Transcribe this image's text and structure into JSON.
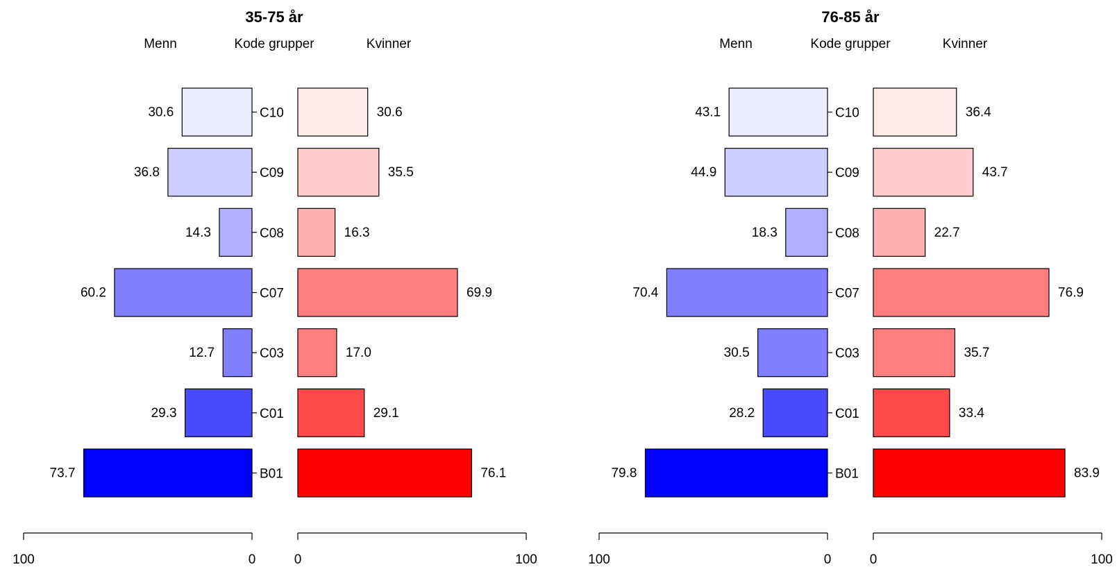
{
  "chart_data": [
    {
      "type": "bar",
      "title": "35-75 år",
      "headers": {
        "left": "Menn",
        "center": "Kode grupper",
        "right": "Kvinner"
      },
      "categories": [
        "C10",
        "C09",
        "C08",
        "C07",
        "C03",
        "C01",
        "B01"
      ],
      "series": [
        {
          "name": "Menn",
          "values": [
            30.6,
            36.8,
            14.3,
            60.2,
            12.7,
            29.3,
            73.7
          ]
        },
        {
          "name": "Kvinner",
          "values": [
            30.6,
            35.5,
            16.3,
            69.9,
            17.0,
            29.1,
            76.1
          ]
        }
      ],
      "labels_left": [
        "30.6",
        "36.8",
        "14.3",
        "60.2",
        "12.7",
        "29.3",
        "73.7"
      ],
      "labels_right": [
        "30.6",
        "35.5",
        "16.3",
        "69.9",
        "17.0",
        "29.1",
        "76.1"
      ],
      "xlim": [
        0,
        100
      ],
      "ticks_left": [
        "100",
        "0"
      ],
      "ticks_right": [
        "0",
        "100"
      ]
    },
    {
      "type": "bar",
      "title": "76-85 år",
      "headers": {
        "left": "Menn",
        "center": "Kode grupper",
        "right": "Kvinner"
      },
      "categories": [
        "C10",
        "C09",
        "C08",
        "C07",
        "C03",
        "C01",
        "B01"
      ],
      "series": [
        {
          "name": "Menn",
          "values": [
            43.1,
            44.9,
            18.3,
            70.4,
            30.5,
            28.2,
            79.8
          ]
        },
        {
          "name": "Kvinner",
          "values": [
            36.4,
            43.7,
            22.7,
            76.9,
            35.7,
            33.4,
            83.9
          ]
        }
      ],
      "labels_left": [
        "43.1",
        "44.9",
        "18.3",
        "70.4",
        "30.5",
        "28.2",
        "79.8"
      ],
      "labels_right": [
        "36.4",
        "43.7",
        "22.7",
        "76.9",
        "35.7",
        "33.4",
        "83.9"
      ],
      "xlim": [
        0,
        100
      ],
      "ticks_left": [
        "100",
        "0"
      ],
      "ticks_right": [
        "0",
        "100"
      ]
    }
  ],
  "colors": {
    "men": [
      "#ebebff",
      "#cdcdff",
      "#b1b1ff",
      "#7f7fff",
      "#7f7fff",
      "#4a4aff",
      "#0000ff"
    ],
    "women": [
      "#ffebeb",
      "#ffcdcd",
      "#ffb1b1",
      "#ff7f7f",
      "#ff7f7f",
      "#ff4a4a",
      "#ff0000"
    ]
  }
}
